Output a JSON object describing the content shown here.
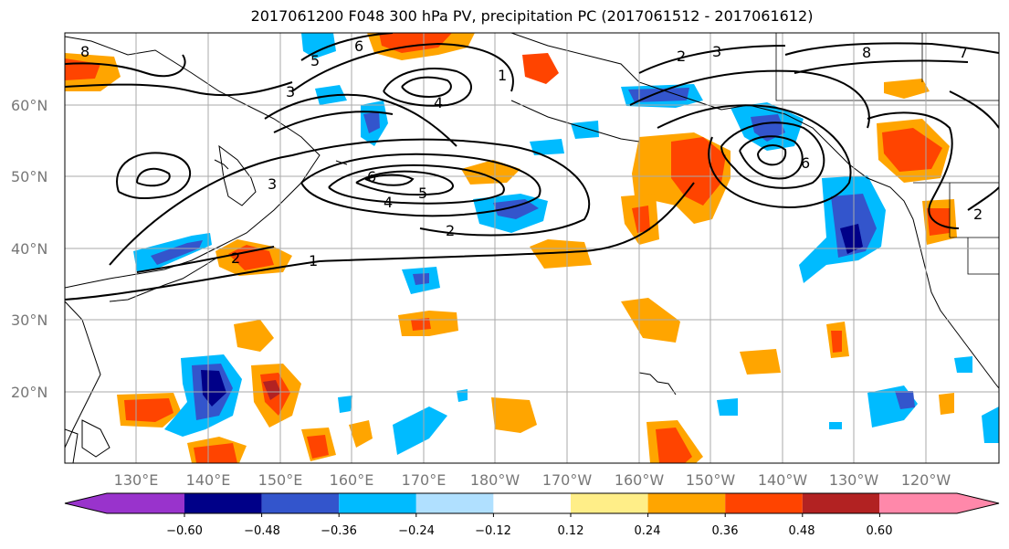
{
  "title": "2017061200 F048 300 hPa PV, precipitation PC (2017061512 - 2017061612)",
  "lat_labels": [
    "60°N",
    "50°N",
    "40°N",
    "30°N",
    "20°N"
  ],
  "lon_labels": [
    "130°E",
    "140°E",
    "150°E",
    "160°E",
    "170°E",
    "180°W",
    "170°W",
    "160°W",
    "150°W",
    "140°W",
    "130°W",
    "120°W"
  ],
  "colorbar": {
    "ticks": [
      "−0.60",
      "−0.48",
      "−0.36",
      "−0.24",
      "−0.12",
      "0.12",
      "0.24",
      "0.36",
      "0.48",
      "0.60"
    ],
    "colors": [
      "#9933cc",
      "#000088",
      "#3355cc",
      "#00bbff",
      "#b0e0ff",
      "#ffffff",
      "#ffee88",
      "#ffa500",
      "#ff4400",
      "#b22222",
      "#ff88aa"
    ]
  },
  "contour_labels": [
    "1",
    "2",
    "2",
    "3",
    "3",
    "4",
    "4",
    "5",
    "5",
    "6",
    "6",
    "6",
    "7",
    "8",
    "8",
    "1",
    "2",
    "2",
    "3"
  ]
}
